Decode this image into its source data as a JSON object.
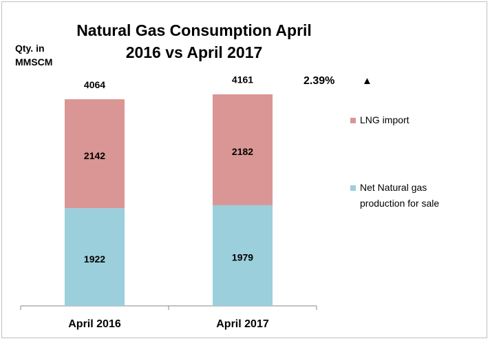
{
  "chart_data": {
    "type": "stacked_bar",
    "title": "Natural Gas Consumption April 2016 vs April 2017",
    "y_label": "Qty. in MMSCM",
    "categories": [
      "April 2016",
      "April 2017"
    ],
    "series": [
      {
        "name": "Net Natural gas production for sale",
        "color": "#9bcfdc",
        "values": [
          1922,
          1979
        ]
      },
      {
        "name": "LNG import",
        "color": "#d99694",
        "values": [
          2142,
          2182
        ]
      }
    ],
    "totals": [
      4064,
      4161
    ],
    "annotations": [
      "2.39%",
      "▲"
    ],
    "ylim": [
      0,
      5000
    ],
    "legend": "right"
  }
}
